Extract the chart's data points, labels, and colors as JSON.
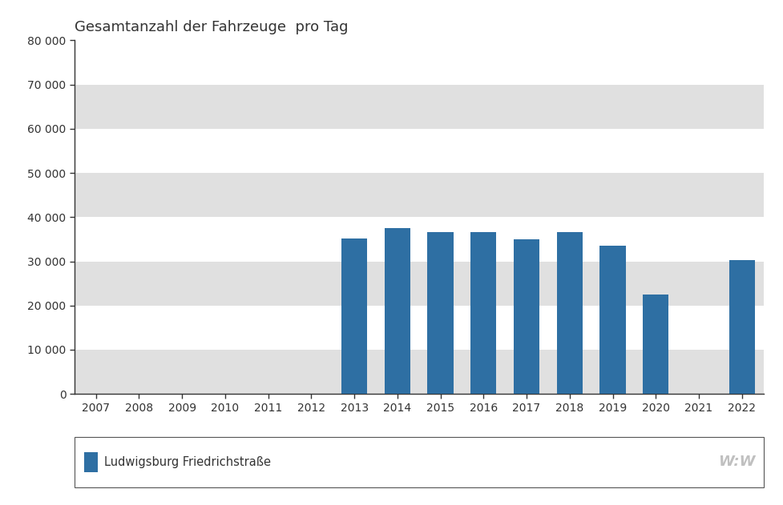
{
  "title": "Gesamtanzahl der Fahrzeuge  pro Tag",
  "years": [
    2007,
    2008,
    2009,
    2010,
    2011,
    2012,
    2013,
    2014,
    2015,
    2016,
    2017,
    2018,
    2019,
    2020,
    2021,
    2022
  ],
  "values": [
    null,
    null,
    null,
    null,
    null,
    null,
    35100,
    37600,
    36700,
    36700,
    35000,
    36700,
    33600,
    22500,
    null,
    30200
  ],
  "bar_color": "#2E6FA3",
  "background_color": "#ffffff",
  "band_colors": [
    "#ffffff",
    "#e0e0e0"
  ],
  "ylim": [
    0,
    80000
  ],
  "yticks": [
    0,
    10000,
    20000,
    30000,
    40000,
    50000,
    60000,
    70000,
    80000
  ],
  "ytick_labels": [
    "0",
    "10 000",
    "20 000",
    "30 000",
    "40 000",
    "50 000",
    "60 000",
    "70 000",
    "80 000"
  ],
  "legend_label": "Ludwigsburg Friedrichstraße",
  "legend_box_color": "#2E6FA3",
  "watermark": "W:W",
  "title_fontsize": 13,
  "tick_fontsize": 10,
  "legend_fontsize": 10.5,
  "bar_width": 0.6
}
